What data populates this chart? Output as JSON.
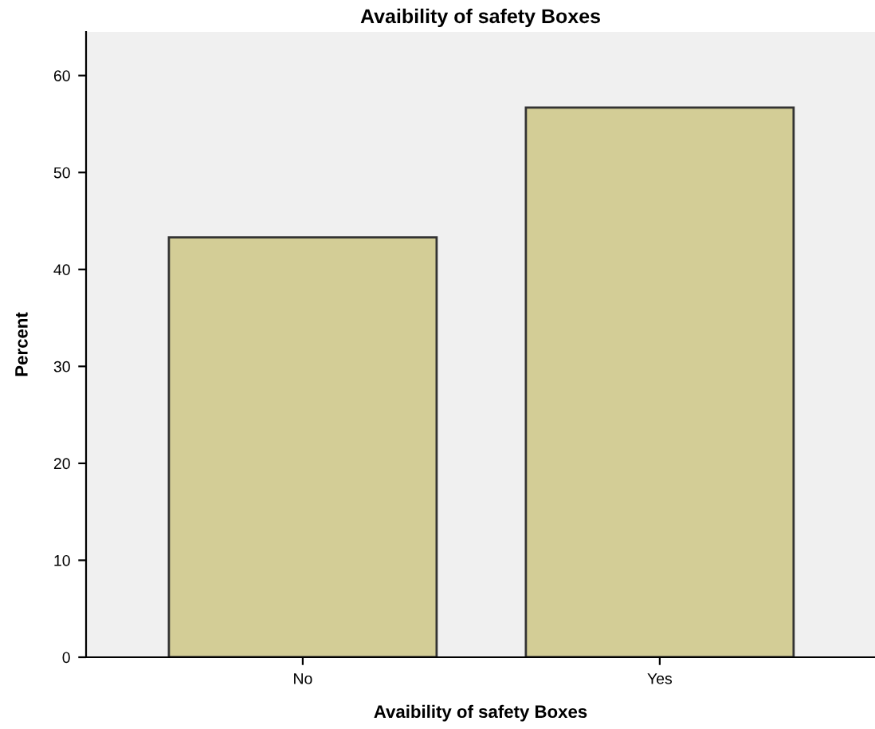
{
  "chart_data": {
    "type": "bar",
    "title": "Avaibility of safety Boxes",
    "xlabel": "Avaibility of safety Boxes",
    "ylabel": "Percent",
    "categories": [
      "No",
      "Yes"
    ],
    "values": [
      43.3,
      56.7
    ],
    "color": "#d3cd96",
    "ylim": [
      0,
      64.5
    ],
    "yticks": [
      0,
      10,
      20,
      30,
      40,
      50,
      60
    ],
    "grid": false
  }
}
